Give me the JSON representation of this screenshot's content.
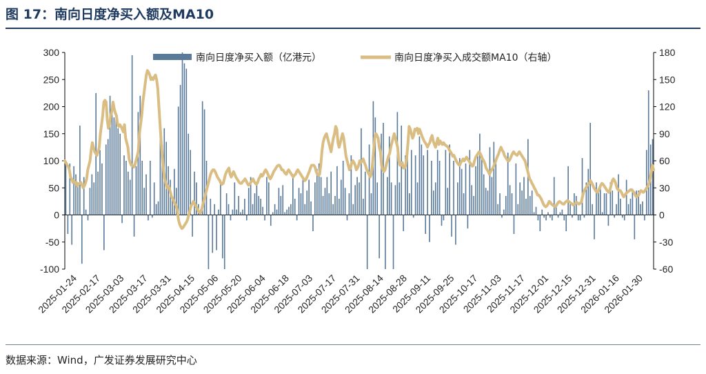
{
  "header": {
    "title": "图 17：南向日度净买入额及MA10"
  },
  "footer": {
    "source": "数据来源：Wind，广发证券发展研究中心"
  },
  "colors": {
    "bar": "#5a7a9a",
    "line": "#d9bd82",
    "axis": "#000000",
    "title": "#1f3a5f"
  },
  "chart_data": {
    "type": "bar+line",
    "title": "南向日度净买入额及MA10",
    "legend": [
      "南向日度净买入额（亿港元）",
      "南向日度净买入成交额MA10（右轴）"
    ],
    "y_left": {
      "min": -100,
      "max": 300,
      "ticks": [
        "300",
        "250",
        "200",
        "150",
        "100",
        "50",
        "0",
        "-50",
        "-100"
      ]
    },
    "y_right": {
      "min": -60,
      "max": 180,
      "ticks": [
        "180",
        "150",
        "120",
        "90",
        "60",
        "30",
        "0",
        "-30",
        "-60"
      ]
    },
    "x_ticks": [
      "2025-01-24",
      "2025-02-17",
      "2025-03-03",
      "2025-03-17",
      "2025-03-31",
      "2025-04-15",
      "2025-05-06",
      "2025-05-20",
      "2025-06-04",
      "2025-06-18",
      "2025-07-03",
      "2025-07-17",
      "2025-07-31",
      "2025-08-14",
      "2025-08-28",
      "2025-09-11",
      "2025-09-25",
      "2025-10-17",
      "2025-11-03",
      "2025-11-17",
      "2025-12-01",
      "2025-12-15",
      "2025-12-31",
      "2026-01-16",
      "2026-01-30"
    ],
    "series": [
      {
        "name": "南向日度净买入额（亿港元）",
        "axis": "left",
        "type": "bar",
        "values": [
          97,
          -35,
          95,
          -55,
          90,
          75,
          60,
          165,
          -90,
          70,
          10,
          -10,
          50,
          75,
          60,
          225,
          80,
          120,
          95,
          -65,
          130,
          140,
          220,
          200,
          180,
          185,
          160,
          150,
          -15,
          110,
          100,
          80,
          65,
          295,
          -40,
          90,
          190,
          220,
          100,
          50,
          75,
          -10,
          100,
          -5,
          60,
          20,
          25,
          150,
          130,
          160,
          135,
          90,
          65,
          35,
          85,
          50,
          200,
          240,
          300,
          280,
          270,
          150,
          120,
          -40,
          80,
          60,
          20,
          10,
          210,
          195,
          100,
          -100,
          30,
          -70,
          20,
          -65,
          10,
          65,
          -80,
          -100,
          40,
          20,
          -10,
          10,
          60,
          10,
          35,
          5,
          10,
          30,
          -10,
          50,
          70,
          20,
          40,
          55,
          35,
          30,
          15,
          -10,
          70,
          60,
          -20,
          5,
          20,
          10,
          50,
          35,
          55,
          5,
          10,
          15,
          20,
          75,
          30,
          -10,
          50,
          40,
          70,
          20,
          45,
          65,
          25,
          -30,
          60,
          85,
          95,
          70,
          35,
          50,
          70,
          40,
          80,
          20,
          35,
          90,
          30,
          65,
          100,
          50,
          -10,
          40,
          110,
          20,
          55,
          70,
          60,
          160,
          30,
          80,
          -100,
          130,
          40,
          210,
          180,
          60,
          -80,
          150,
          170,
          -100,
          70,
          145,
          60,
          -100,
          55,
          190,
          60,
          165,
          -30,
          110,
          120,
          40,
          120,
          -5,
          110,
          60,
          145,
          130,
          110,
          -35,
          120,
          -50,
          100,
          45,
          60,
          120,
          100,
          -20,
          -10,
          120,
          50,
          130,
          -40,
          100,
          -55,
          60,
          105,
          85,
          40,
          95,
          -25,
          120,
          55,
          35,
          90,
          115,
          150,
          110,
          75,
          50,
          45,
          125,
          70,
          135,
          100,
          20,
          40,
          -5,
          10,
          35,
          115,
          55,
          40,
          -35,
          95,
          20,
          60,
          45,
          70,
          30,
          140,
          35,
          45,
          5,
          15,
          -10,
          -30,
          10,
          -5,
          -10,
          5,
          -5,
          -10,
          70,
          20,
          -5,
          5,
          10,
          -10,
          -30,
          90,
          20,
          -5,
          40,
          35,
          -10,
          -10,
          105,
          -5,
          60,
          85,
          170,
          20,
          -45,
          60,
          45,
          50,
          5,
          40,
          40,
          -20,
          60,
          45,
          -5,
          20,
          75,
          30,
          -5,
          -10,
          65,
          20,
          30,
          45,
          -45,
          45,
          45,
          20,
          25,
          -10,
          120,
          230,
          130,
          140
        ]
      },
      {
        "name": "南向日度净买入成交额MA10（右轴）",
        "axis": "right",
        "type": "line",
        "values": [
          60,
          58,
          55,
          54,
          50,
          42,
          40,
          36,
          38,
          35,
          36,
          32,
          34,
          35,
          36,
          33,
          30,
          32,
          35,
          40,
          50,
          55,
          60,
          72,
          80,
          75,
          70,
          68,
          66,
          70,
          75,
          90,
          100,
          110,
          125,
          127,
          125,
          105,
          96,
          100,
          110,
          115,
          125,
          118,
          113,
          110,
          100,
          98,
          100,
          98,
          95,
          92,
          100,
          85,
          80,
          75,
          62,
          58,
          55,
          55,
          53,
          55,
          60,
          65,
          70,
          90,
          100,
          110,
          125,
          135,
          145,
          155,
          160,
          158,
          155,
          150,
          152,
          150,
          153,
          155,
          150,
          140,
          120,
          100,
          80,
          65,
          50,
          40,
          35,
          30,
          32,
          30,
          25,
          20,
          18,
          15,
          12,
          10,
          5,
          -5,
          -10,
          -13,
          -15,
          -14,
          -12,
          -10,
          -8,
          -5,
          0,
          5,
          10,
          12,
          15,
          13,
          10,
          8,
          5,
          3,
          2,
          5,
          10,
          15,
          20,
          25,
          30,
          35,
          40,
          45,
          48,
          50,
          50,
          48,
          45,
          42,
          40,
          38,
          35,
          34,
          35,
          40,
          45,
          48,
          50,
          52,
          45,
          42,
          45,
          48,
          45,
          42,
          40,
          38,
          36,
          35,
          35,
          37,
          38,
          40,
          38,
          35,
          33,
          34,
          36,
          38,
          40,
          37,
          35,
          34,
          36,
          40,
          42,
          45,
          43,
          45,
          48,
          50,
          48,
          45,
          42,
          40,
          42,
          45,
          48,
          50,
          52,
          54,
          55,
          55,
          53,
          50,
          50,
          48,
          46,
          45,
          48,
          50,
          48,
          46,
          44,
          42,
          44,
          45,
          48,
          50,
          48,
          46,
          44,
          42,
          40,
          38,
          39,
          42,
          45,
          48,
          52,
          55,
          55,
          55,
          53,
          48,
          45,
          44,
          45,
          55,
          70,
          80,
          85,
          88,
          90,
          85,
          80,
          75,
          70,
          78,
          85,
          90,
          98,
          95,
          80,
          75,
          80,
          85,
          90,
          85,
          75,
          65,
          60,
          55,
          50,
          52,
          58,
          60,
          58,
          55,
          50,
          52,
          55,
          60,
          58,
          60,
          62,
          58,
          55,
          50,
          48,
          45,
          42,
          45,
          55,
          70,
          85,
          90,
          88,
          85,
          75,
          70,
          55,
          50,
          48,
          50,
          55,
          60,
          65,
          68,
          75,
          80,
          85,
          90,
          85,
          80,
          75,
          60,
          55,
          55,
          58,
          52,
          52,
          55,
          65,
          80,
          98,
          95,
          90,
          85,
          88,
          95,
          94,
          96,
          90,
          95,
          92,
          88,
          85,
          82,
          80,
          78,
          75,
          78,
          80,
          85,
          88,
          82,
          78,
          75,
          80,
          85,
          78,
          82,
          80,
          78,
          80,
          78,
          77,
          76,
          75,
          72,
          70,
          68,
          65,
          66,
          63,
          60,
          58,
          56,
          55,
          58,
          60,
          62,
          60,
          62,
          64,
          62,
          60,
          58,
          56,
          54,
          55,
          60,
          64,
          66,
          68,
          70,
          68,
          65,
          62,
          60,
          57,
          52,
          50,
          48,
          45,
          48,
          50,
          52,
          55,
          58,
          62,
          65,
          68,
          72,
          75,
          72,
          70,
          66,
          64,
          62,
          60,
          60,
          62,
          65,
          68,
          70,
          68,
          67,
          66,
          68,
          70,
          68,
          66,
          64,
          62,
          60,
          55,
          50,
          45,
          40,
          38,
          35,
          33,
          30,
          28,
          25,
          22,
          22,
          20,
          18,
          15,
          12,
          10,
          9,
          10,
          12,
          15,
          14,
          12,
          11,
          10,
          9,
          10,
          12,
          14,
          15,
          14,
          13,
          12,
          12,
          14,
          15,
          16,
          15,
          14,
          13,
          12,
          11,
          12,
          13,
          14,
          13,
          12,
          13,
          14,
          20,
          25,
          28,
          30,
          32,
          34,
          35,
          38,
          36,
          33,
          30,
          28,
          26,
          25,
          27,
          30,
          33,
          35,
          34,
          32,
          30,
          28,
          26,
          25,
          28,
          33,
          38,
          40,
          38,
          35,
          30,
          28,
          27,
          27,
          25,
          22,
          20,
          22,
          24,
          25,
          26,
          27,
          28,
          28,
          26,
          25,
          22,
          20,
          21,
          22,
          25,
          27,
          26,
          25,
          26,
          28,
          30,
          32,
          35,
          40,
          48,
          55,
          50
        ]
      }
    ]
  }
}
